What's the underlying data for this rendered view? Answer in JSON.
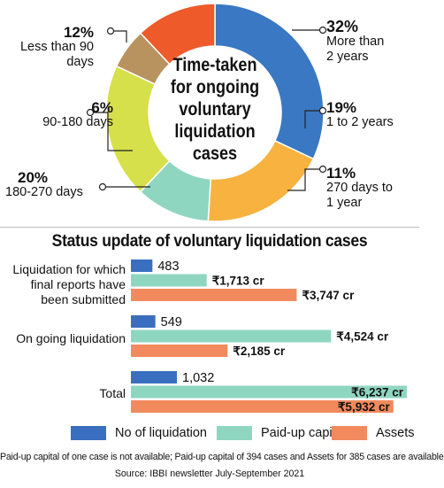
{
  "chart_data": [
    {
      "type": "pie",
      "title": "Time-taken for ongoing voluntary liquidation cases",
      "slices": [
        {
          "label": "More than 2 years",
          "value": 32,
          "percent_label": "32%",
          "color": "#3a78c3"
        },
        {
          "label": "1 to 2 years",
          "value": 19,
          "percent_label": "19%",
          "color": "#f7b23f"
        },
        {
          "label": "270 days to 1 year",
          "value": 11,
          "percent_label": "11%",
          "color": "#8fd6c0"
        },
        {
          "label": "180-270 days",
          "value": 20,
          "percent_label": "20%",
          "color": "#d6e04a"
        },
        {
          "label": "90-180 days",
          "value": 6,
          "percent_label": "6%",
          "color": "#b8935f"
        },
        {
          "label": "Less than 90 days",
          "value": 12,
          "percent_label": "12%",
          "color": "#ee5a2a"
        }
      ]
    },
    {
      "type": "bar",
      "orientation": "horizontal",
      "title": "Status update of voluntary liquidation cases",
      "categories": [
        "Liquidation for which final reports have been submitted",
        "On going liquidation",
        "Total"
      ],
      "series": [
        {
          "name": "No of liquidation",
          "color": "#3a6fbf",
          "values": [
            483,
            549,
            1032
          ],
          "value_labels": [
            "483",
            "549",
            "1,032"
          ]
        },
        {
          "name": "Paid-up capital",
          "color": "#8fd6c0",
          "values": [
            1713,
            4524,
            6237
          ],
          "value_labels": [
            "₹1,713 cr",
            "₹4,524 cr",
            "₹6,237 cr"
          ]
        },
        {
          "name": "Assets",
          "color": "#f28a5e",
          "values": [
            3747,
            2185,
            5932
          ],
          "value_labels": [
            "₹3,747 cr",
            "₹2,185 cr",
            "₹5,932 cr"
          ]
        }
      ]
    }
  ],
  "donut": {
    "center_title": [
      "Time-taken",
      "for ongoing",
      "voluntary",
      "liquidation",
      "cases"
    ],
    "labels": [
      {
        "pct": "12%",
        "desc": [
          "Less than 90",
          "days"
        ]
      },
      {
        "pct": "6%",
        "desc": [
          "90-180 days"
        ]
      },
      {
        "pct": "20%",
        "desc": [
          "180-270 days"
        ]
      },
      {
        "pct": "32%",
        "desc": [
          "More than",
          "2 years"
        ]
      },
      {
        "pct": "19%",
        "desc": [
          "1 to 2 years"
        ]
      },
      {
        "pct": "11%",
        "desc": [
          "270 days to",
          "1 year"
        ]
      }
    ]
  },
  "bars": {
    "title": "Status update of voluntary liquidation cases",
    "category_lines": [
      [
        "Liquidation for which",
        "final reports have",
        "been submitted"
      ],
      [
        "On going liquidation"
      ],
      [
        "Total"
      ]
    ]
  },
  "legend": {
    "items": [
      {
        "label": "No of liquidation",
        "color": "#3a6fbf"
      },
      {
        "label": "Paid-up capital",
        "color": "#8fd6c0"
      },
      {
        "label": "Assets",
        "color": "#f28a5e"
      }
    ]
  },
  "footnote": "Paid-up capital of one case is not available; Paid-up capital of 394 cases and Assets for 385 cases are available",
  "source": "Source: IBBI newsletter July-September 2021"
}
